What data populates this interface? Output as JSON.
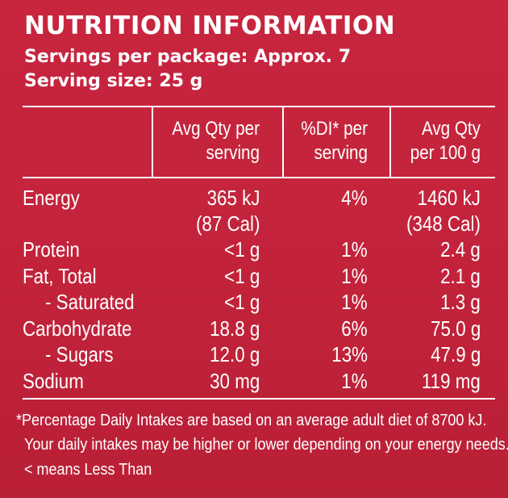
{
  "title": "NUTRITION INFORMATION",
  "servings_per_package": "Servings per package: Approx. 7",
  "serving_size": "Serving size: 25 g",
  "headers": {
    "col1_line1": "Avg Qty per",
    "col1_line2": "serving",
    "col2_line1": "%DI* per",
    "col2_line2": "serving",
    "col3_line1": "Avg Qty",
    "col3_line2": "per 100 g"
  },
  "rows": [
    {
      "name": "Energy",
      "per_serving": "365 kJ",
      "per_serving_2": "(87 Cal)",
      "di": "4%",
      "per_100g": "1460 kJ",
      "per_100g_2": "(348 Cal)"
    },
    {
      "name": "Protein",
      "per_serving": "<1 g",
      "di": "1%",
      "per_100g": "2.4 g"
    },
    {
      "name": "Fat, Total",
      "per_serving": "<1 g",
      "di": "1%",
      "per_100g": "2.1 g"
    },
    {
      "name": "- Saturated",
      "per_serving": "<1 g",
      "di": "1%",
      "per_100g": "1.3 g"
    },
    {
      "name": "Carbohydrate",
      "per_serving": "18.8 g",
      "di": "6%",
      "per_100g": "75.0 g"
    },
    {
      "name": "- Sugars",
      "per_serving": "12.0 g",
      "di": "13%",
      "per_100g": "47.9 g"
    },
    {
      "name": "Sodium",
      "per_serving": "30 mg",
      "di": "1%",
      "per_100g": "119 mg"
    }
  ],
  "footnotes": {
    "line1": "*Percentage Daily Intakes are based on an average adult diet of 8700 kJ.",
    "line2": "Your daily intakes may be higher or lower depending on your energy needs.",
    "line3": "< means Less Than"
  },
  "colors": {
    "background": "#c2233b",
    "text": "#ffffff"
  }
}
